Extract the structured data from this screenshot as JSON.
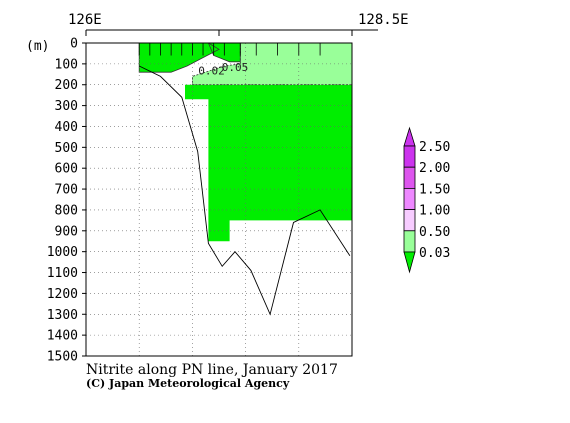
{
  "chart_data": {
    "type": "section-contour",
    "title": "Nitrite along PN line, January 2017",
    "credit": "(C) Japan Meteorological Agency",
    "depth_unit": "(m)",
    "x_range": [
      126.0,
      128.5
    ],
    "x_tick_labels": [
      {
        "value": 126.0,
        "label": "126E"
      },
      {
        "value": 128.5,
        "label": "128.5E"
      }
    ],
    "y_range": [
      0,
      1500
    ],
    "y_ticks": [
      0,
      100,
      200,
      300,
      400,
      500,
      600,
      700,
      800,
      900,
      1000,
      1100,
      1200,
      1300,
      1400,
      1500
    ],
    "grid": "dotted",
    "stations_lon": [
      126.5,
      126.6,
      126.7,
      126.8,
      126.9,
      127.0,
      127.1,
      127.2,
      127.3,
      127.45,
      127.6,
      127.8,
      128.0,
      128.2,
      128.5
    ],
    "bottom_profile": [
      {
        "lon": 126.5,
        "depth": 110
      },
      {
        "lon": 126.7,
        "depth": 160
      },
      {
        "lon": 126.9,
        "depth": 260
      },
      {
        "lon": 127.05,
        "depth": 520
      },
      {
        "lon": 127.15,
        "depth": 960
      },
      {
        "lon": 127.28,
        "depth": 1070
      },
      {
        "lon": 127.4,
        "depth": 1000
      },
      {
        "lon": 127.55,
        "depth": 1090
      },
      {
        "lon": 127.73,
        "depth": 1300
      },
      {
        "lon": 127.95,
        "depth": 860
      },
      {
        "lon": 128.2,
        "depth": 800
      },
      {
        "lon": 128.48,
        "depth": 1020
      }
    ],
    "shaded_regions": [
      {
        "level": "0.03-0.50",
        "color": "#00ee00",
        "depth_max": 950,
        "polygon": [
          [
            126.93,
            200
          ],
          [
            128.5,
            200
          ],
          [
            128.5,
            850
          ],
          [
            127.35,
            850
          ],
          [
            127.35,
            950
          ],
          [
            127.15,
            950
          ],
          [
            127.15,
            270
          ],
          [
            126.93,
            270
          ]
        ]
      },
      {
        "level": "0.03-0.50",
        "color": "#00ee00",
        "depth_max": 140,
        "polygon": [
          [
            126.5,
            0
          ],
          [
            127.15,
            0
          ],
          [
            127.25,
            30
          ],
          [
            127.1,
            70
          ],
          [
            126.95,
            110
          ],
          [
            126.8,
            140
          ],
          [
            126.5,
            140
          ]
        ]
      },
      {
        "level": "0.03-0.50",
        "color": "#00ee00",
        "depth_max": 100,
        "polygon": [
          [
            127.15,
            0
          ],
          [
            127.45,
            0
          ],
          [
            127.45,
            90
          ],
          [
            127.35,
            90
          ],
          [
            127.2,
            60
          ]
        ]
      },
      {
        "level": "0.50-1.00",
        "color": "#99ff99",
        "depth_max": 200,
        "polygon": [
          [
            127.45,
            0
          ],
          [
            128.5,
            0
          ],
          [
            128.5,
            200
          ],
          [
            127.0,
            200
          ],
          [
            127.0,
            160
          ],
          [
            127.3,
            110
          ],
          [
            127.45,
            100
          ]
        ]
      }
    ],
    "contour_labels": [
      {
        "text": "0.02",
        "lon": 127.18,
        "depth": 150
      },
      {
        "text": "0.05",
        "lon": 127.4,
        "depth": 135
      }
    ],
    "legend": {
      "levels": [
        "2.50",
        "2.00",
        "1.50",
        "1.00",
        "0.50",
        "0.03"
      ],
      "colors": [
        "#cc33ee",
        "#dd55ee",
        "#ee88ff",
        "#f7ccff",
        "#99ff99",
        "#00ee00"
      ]
    }
  }
}
